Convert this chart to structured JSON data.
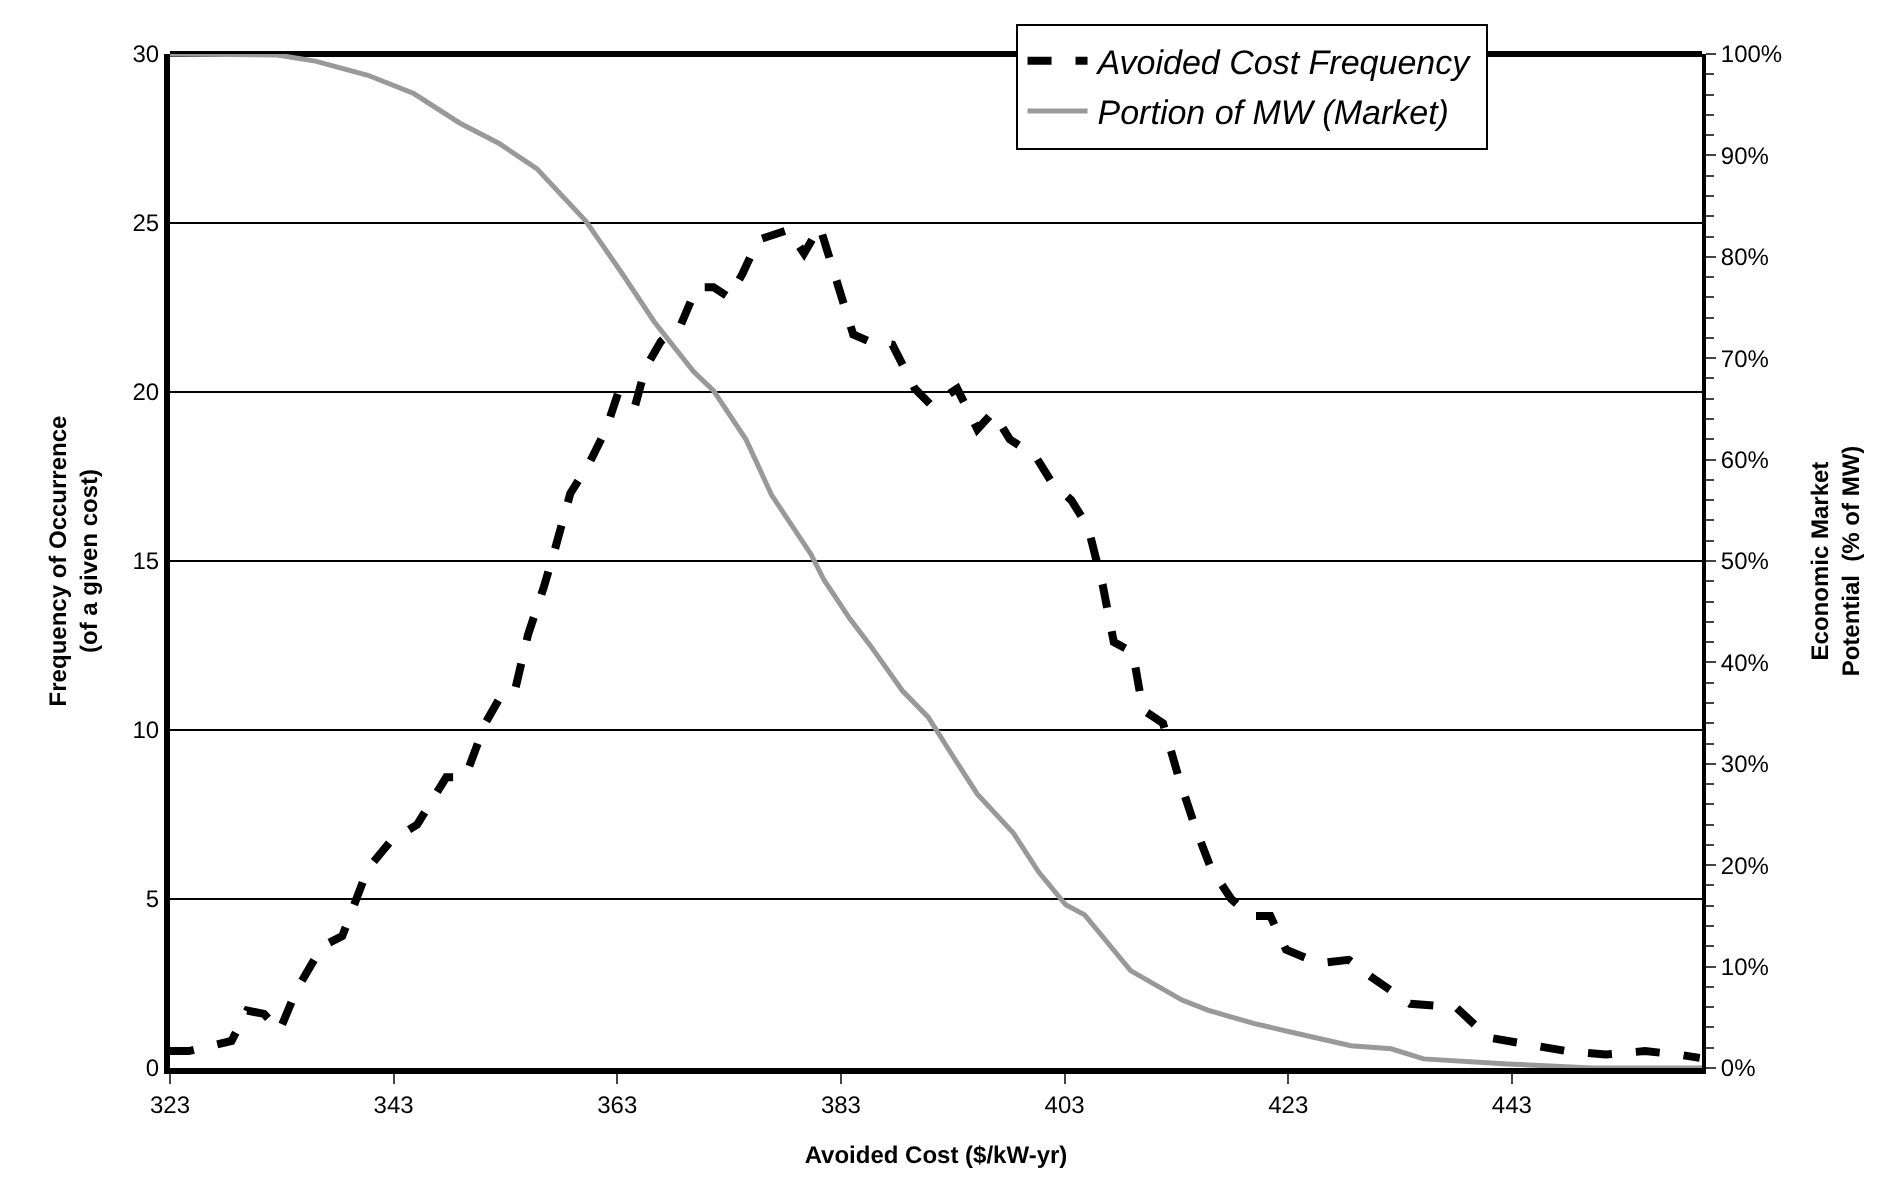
{
  "chart_data": {
    "type": "line",
    "xlabel": "Avoided Cost ($/kW-yr)",
    "ylabel": "Frequency of Occurrence\n(of a given cost)",
    "y2label": "Economic Market\nPotential  (% of MW)",
    "xlim": [
      323,
      460
    ],
    "xticks": [
      323,
      343,
      363,
      383,
      403,
      423,
      443
    ],
    "ylim": [
      0,
      30
    ],
    "yticks": [
      0,
      5,
      10,
      15,
      20,
      25,
      30
    ],
    "y2lim": [
      0,
      100
    ],
    "y2ticks": [
      {
        "value": 0,
        "label": "0%"
      },
      {
        "value": 10,
        "label": "10%"
      },
      {
        "value": 20,
        "label": "20%"
      },
      {
        "value": 30,
        "label": "30%"
      },
      {
        "value": 40,
        "label": "40%"
      },
      {
        "value": 50,
        "label": "50%"
      },
      {
        "value": 60,
        "label": "60%"
      },
      {
        "value": 70,
        "label": "70%"
      },
      {
        "value": 80,
        "label": "80%"
      },
      {
        "value": 90,
        "label": "90%"
      },
      {
        "value": 100,
        "label": "100%"
      }
    ],
    "grid": "y",
    "legend": "top right",
    "marker": "none",
    "series": [
      {
        "name": "Avoided Cost Frequency",
        "color": "#000000",
        "line_style": "dashed",
        "axis": "y",
        "x": [
          323,
          324.7,
          328.5,
          329.9,
          331.4,
          332.8,
          334.3,
          336.6,
          338.4,
          340.7,
          342.7,
          345.1,
          347.7,
          349.4,
          351.2,
          352.4,
          353.8,
          355.0,
          356.4,
          357.3,
          358.8,
          360.5,
          362.0,
          363.1,
          364.6,
          365.5,
          366.9,
          368.7,
          370.1,
          371.6,
          373.0,
          374.2,
          375.6,
          378.3,
          379.7,
          381.1,
          382.6,
          384.1,
          385.5,
          387.6,
          389.6,
          391.1,
          393.4,
          395.2,
          396.6,
          398.1,
          400.4,
          401.9,
          403.6,
          405.1,
          406.4,
          407.4,
          409.1,
          410.0,
          411.8,
          413.2,
          414.7,
          416.1,
          417.9,
          419.6,
          421.4,
          422.8,
          425.7,
          428.4,
          430.4,
          433.9,
          438.0,
          440.9,
          444.4,
          447.9,
          451.4,
          454.9,
          457.8,
          459.8
        ],
        "values": [
          0.5,
          0.5,
          0.8,
          1.7,
          1.6,
          1.1,
          2.3,
          3.6,
          3.9,
          5.9,
          6.7,
          7.2,
          8.6,
          8.6,
          10.2,
          10.9,
          11.1,
          12.8,
          14.2,
          15.2,
          17.0,
          17.9,
          18.9,
          20.0,
          19.6,
          20.7,
          21.5,
          22.0,
          23.1,
          23.1,
          22.8,
          23.5,
          24.5,
          24.8,
          24.1,
          24.9,
          23.3,
          21.7,
          21.5,
          21.4,
          20.1,
          19.6,
          20.1,
          18.9,
          19.4,
          18.6,
          18.1,
          17.3,
          16.8,
          16.0,
          14.3,
          12.6,
          12.3,
          10.6,
          10.2,
          8.6,
          7.1,
          5.9,
          5.0,
          4.5,
          4.5,
          3.5,
          3.1,
          3.2,
          2.7,
          1.9,
          1.8,
          0.9,
          0.7,
          0.5,
          0.4,
          0.5,
          0.4,
          0.3
        ]
      },
      {
        "name": "Portion of MW (Market)",
        "color": "#999999",
        "line_style": "solid",
        "axis": "y2",
        "x": [
          323,
          332.6,
          336.0,
          340.7,
          344.8,
          348.9,
          352.4,
          355.8,
          360.2,
          363.4,
          366.3,
          369.8,
          371.6,
          374.5,
          376.8,
          380.3,
          381.5,
          383.8,
          385.6,
          388.5,
          390.8,
          393.1,
          395.2,
          398.4,
          400.7,
          403.1,
          404.8,
          408.9,
          413.5,
          415.8,
          419.9,
          423.4,
          428.6,
          432.2,
          435.1,
          442.6,
          450.2,
          460
        ],
        "values": [
          100,
          99.9,
          99.3,
          97.9,
          96.1,
          93.2,
          91.2,
          88.7,
          83.5,
          78.4,
          73.6,
          68.7,
          66.8,
          62.0,
          56.5,
          50.7,
          48.1,
          44.3,
          41.7,
          37.2,
          34.6,
          30.6,
          27.0,
          23.2,
          19.3,
          16.1,
          15.1,
          9.6,
          6.7,
          5.7,
          4.4,
          3.5,
          2.2,
          1.9,
          0.9,
          0.4,
          0.0,
          0.0
        ]
      }
    ]
  }
}
